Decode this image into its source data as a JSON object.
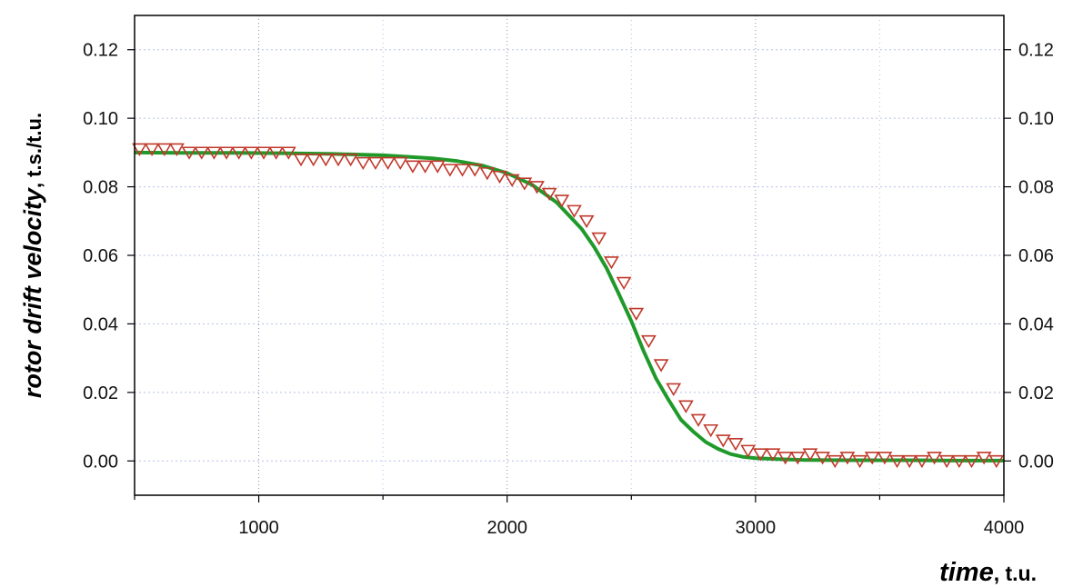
{
  "chart_data": {
    "type": "scatter",
    "title": "",
    "xlabel_main": "time",
    "xlabel_unit": ", t.u.",
    "ylabel_main": "rotor drift velocity",
    "ylabel_unit": ", t.s./t.u.",
    "xlim": [
      500,
      4000
    ],
    "ylim": [
      -0.01,
      0.13
    ],
    "xticks": [
      1000,
      2000,
      3000,
      4000
    ],
    "xtick_labels": [
      "1000",
      "2000",
      "3000",
      "4000"
    ],
    "yticks": [
      0.0,
      0.02,
      0.04,
      0.06,
      0.08,
      0.1,
      0.12
    ],
    "ytick_labels": [
      "0.00",
      "0.02",
      "0.04",
      "0.06",
      "0.08",
      "0.10",
      "0.12"
    ],
    "grid": true,
    "colors": {
      "markers": "#c0392b",
      "fit": "#1f9a2a",
      "grid": "#b8c0e8"
    },
    "series": [
      {
        "type": "scatter",
        "marker": "triangle-down-open",
        "x": [
          520,
          570,
          620,
          670,
          720,
          770,
          820,
          870,
          920,
          970,
          1020,
          1070,
          1120,
          1170,
          1220,
          1270,
          1320,
          1370,
          1420,
          1470,
          1520,
          1570,
          1620,
          1670,
          1720,
          1770,
          1820,
          1870,
          1920,
          1970,
          2020,
          2070,
          2120,
          2170,
          2220,
          2270,
          2320,
          2370,
          2420,
          2470,
          2520,
          2570,
          2620,
          2670,
          2720,
          2770,
          2820,
          2870,
          2920,
          2970,
          3020,
          3070,
          3120,
          3170,
          3220,
          3270,
          3320,
          3370,
          3420,
          3470,
          3520,
          3570,
          3620,
          3670,
          3720,
          3770,
          3820,
          3870,
          3920,
          3970
        ],
        "y": [
          0.091,
          0.091,
          0.091,
          0.091,
          0.09,
          0.09,
          0.09,
          0.09,
          0.09,
          0.09,
          0.09,
          0.09,
          0.09,
          0.088,
          0.088,
          0.088,
          0.088,
          0.088,
          0.087,
          0.087,
          0.087,
          0.087,
          0.086,
          0.086,
          0.086,
          0.085,
          0.085,
          0.085,
          0.084,
          0.083,
          0.082,
          0.081,
          0.08,
          0.078,
          0.076,
          0.073,
          0.07,
          0.065,
          0.058,
          0.052,
          0.043,
          0.035,
          0.028,
          0.021,
          0.016,
          0.012,
          0.009,
          0.006,
          0.005,
          0.003,
          0.002,
          0.002,
          0.001,
          0.001,
          0.002,
          0.001,
          0.0,
          0.001,
          0.0,
          0.001,
          0.001,
          0.0,
          0.0,
          0.0,
          0.001,
          0.0,
          0.0,
          0.0,
          0.001,
          0.0
        ]
      },
      {
        "type": "line",
        "x": [
          500,
          700,
          900,
          1100,
          1300,
          1500,
          1700,
          1800,
          1900,
          2000,
          2100,
          2200,
          2300,
          2350,
          2400,
          2450,
          2500,
          2550,
          2600,
          2650,
          2700,
          2750,
          2800,
          2850,
          2900,
          2950,
          3000,
          3100,
          3200,
          3400,
          3600,
          3800,
          4000
        ],
        "y": [
          0.09,
          0.0899,
          0.0899,
          0.0898,
          0.0896,
          0.0892,
          0.0883,
          0.0875,
          0.0862,
          0.084,
          0.0806,
          0.0754,
          0.0677,
          0.0625,
          0.0563,
          0.0487,
          0.0408,
          0.032,
          0.024,
          0.0178,
          0.012,
          0.0085,
          0.0055,
          0.0035,
          0.002,
          0.0012,
          0.0008,
          0.0005,
          0.0003,
          0.0002,
          0.0002,
          0.0001,
          0.0001
        ]
      }
    ]
  }
}
